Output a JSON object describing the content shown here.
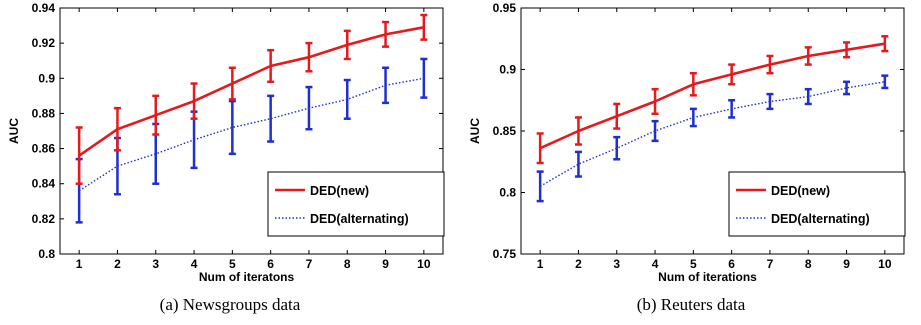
{
  "chart_data": [
    {
      "type": "line",
      "caption": "(a)  Newsgroups data",
      "xlabel": "Num of iteratons",
      "ylabel": "AUC",
      "x": [
        1,
        2,
        3,
        4,
        5,
        6,
        7,
        8,
        9,
        10
      ],
      "xlim": [
        0.5,
        10.5
      ],
      "ylim": [
        0.8,
        0.94
      ],
      "yticks": [
        "0.8",
        "0.82",
        "0.84",
        "0.86",
        "0.88",
        "0.9",
        "0.92",
        "0.94"
      ],
      "legend_position": "lower-right",
      "series": [
        {
          "name": "DED(new)",
          "color": "#e41a1c",
          "style": "solid",
          "values": [
            0.856,
            0.871,
            0.879,
            0.887,
            0.897,
            0.907,
            0.912,
            0.919,
            0.925,
            0.929
          ],
          "err": [
            0.016,
            0.012,
            0.011,
            0.01,
            0.009,
            0.009,
            0.008,
            0.008,
            0.007,
            0.007
          ]
        },
        {
          "name": "DED(alternating)",
          "color": "#1f2fd0",
          "style": "dotted",
          "values": [
            0.836,
            0.85,
            0.857,
            0.865,
            0.872,
            0.877,
            0.883,
            0.888,
            0.896,
            0.9
          ],
          "err": [
            0.018,
            0.016,
            0.017,
            0.016,
            0.015,
            0.013,
            0.012,
            0.011,
            0.01,
            0.011
          ]
        }
      ]
    },
    {
      "type": "line",
      "caption": "(b)  Reuters data",
      "xlabel": "Num of iterations",
      "ylabel": "AUC",
      "x": [
        1,
        2,
        3,
        4,
        5,
        6,
        7,
        8,
        9,
        10
      ],
      "xlim": [
        0.5,
        10.5
      ],
      "ylim": [
        0.75,
        0.95
      ],
      "yticks": [
        "0.75",
        "0.8",
        "0.85",
        "0.9",
        "0.95"
      ],
      "legend_position": "lower-right",
      "series": [
        {
          "name": "DED(new)",
          "color": "#e41a1c",
          "style": "solid",
          "values": [
            0.836,
            0.85,
            0.862,
            0.874,
            0.888,
            0.896,
            0.904,
            0.911,
            0.916,
            0.921
          ],
          "err": [
            0.012,
            0.011,
            0.01,
            0.01,
            0.009,
            0.008,
            0.007,
            0.007,
            0.006,
            0.006
          ]
        },
        {
          "name": "DED(alternating)",
          "color": "#1f2fd0",
          "style": "dotted",
          "values": [
            0.805,
            0.823,
            0.836,
            0.85,
            0.861,
            0.868,
            0.874,
            0.878,
            0.885,
            0.89
          ],
          "err": [
            0.012,
            0.01,
            0.009,
            0.008,
            0.007,
            0.007,
            0.006,
            0.006,
            0.005,
            0.005
          ]
        }
      ]
    }
  ]
}
